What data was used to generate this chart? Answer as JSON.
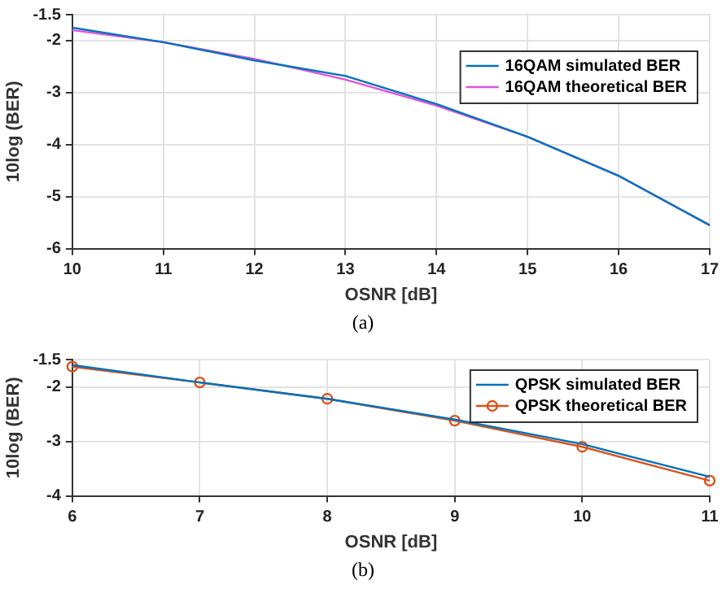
{
  "chart_data": [
    {
      "type": "line",
      "xlabel": "OSNR [dB]",
      "ylabel": "10log (BER)",
      "x": [
        10,
        11,
        12,
        13,
        14,
        15,
        16,
        17
      ],
      "xlim": [
        10,
        17
      ],
      "xticks": [
        10,
        11,
        12,
        13,
        14,
        15,
        16,
        17
      ],
      "ylim": [
        -6,
        -1.5
      ],
      "yticks": [
        -6,
        -5,
        -4,
        -3,
        -2,
        -1.5
      ],
      "grid": true,
      "legend": "top right",
      "annotations": [
        "(a)"
      ],
      "series": [
        {
          "name": "16QAM simulated BER",
          "color": "#0072bd",
          "marker": "none",
          "values": [
            -1.75,
            -2.03,
            -2.38,
            -2.68,
            -3.22,
            -3.85,
            -4.6,
            -5.55
          ]
        },
        {
          "name": "16QAM theoretical BER",
          "color": "#e052e0",
          "marker": "none",
          "values": [
            -1.8,
            -2.03,
            -2.35,
            -2.75,
            -3.25,
            -3.85,
            -4.6,
            -5.55
          ]
        }
      ]
    },
    {
      "type": "line",
      "xlabel": "OSNR [dB]",
      "ylabel": "10log (BER)",
      "x": [
        6,
        7,
        8,
        9,
        10,
        11
      ],
      "xlim": [
        6,
        11
      ],
      "xticks": [
        6,
        7,
        8,
        9,
        10,
        11
      ],
      "ylim": [
        -4,
        -1.5
      ],
      "yticks": [
        -4,
        -3,
        -2,
        -1.5
      ],
      "grid": true,
      "legend": "top right",
      "annotations": [
        "(b)"
      ],
      "series": [
        {
          "name": "QPSK simulated BER",
          "color": "#0072bd",
          "marker": "none",
          "values": [
            -1.6,
            -1.92,
            -2.22,
            -2.6,
            -3.05,
            -3.65
          ]
        },
        {
          "name": "QPSK theoretical BER",
          "color": "#d95319",
          "marker": "circle",
          "values": [
            -1.63,
            -1.92,
            -2.22,
            -2.62,
            -3.1,
            -3.72
          ]
        }
      ]
    }
  ]
}
